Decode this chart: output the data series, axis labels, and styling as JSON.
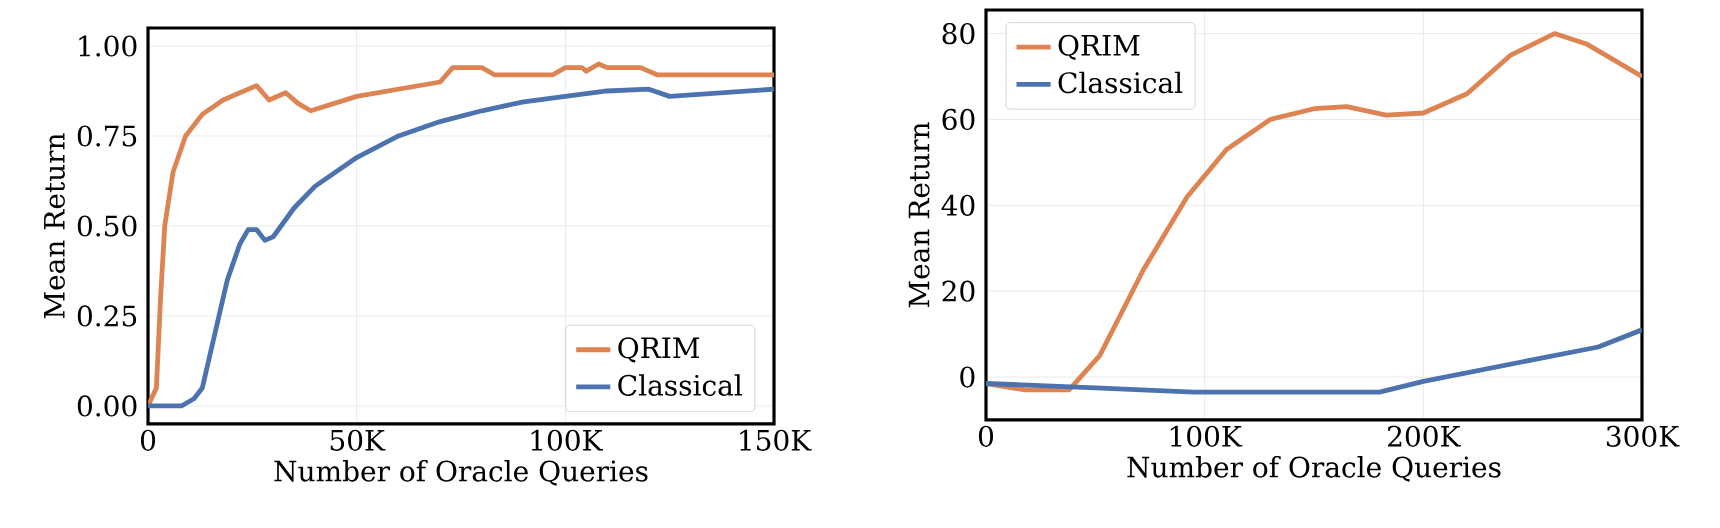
{
  "chart_data": [
    {
      "type": "line",
      "xlabel": "Number of Oracle Queries",
      "ylabel": "Mean Return",
      "xlim": [
        0,
        150000
      ],
      "ylim": [
        -0.05,
        1.05
      ],
      "xticks": [
        0,
        {
          "value": 50000,
          "label": "50K"
        },
        {
          "value": 100000,
          "label": "100K"
        },
        {
          "value": 150000,
          "label": "150K"
        }
      ],
      "yticks": [
        {
          "value": 0,
          "label": "0.00"
        },
        {
          "value": 0.25,
          "label": "0.25"
        },
        {
          "value": 0.5,
          "label": "0.50"
        },
        {
          "value": 0.75,
          "label": "0.75"
        },
        {
          "value": 1,
          "label": "1.00"
        }
      ],
      "grid": true,
      "legend": "bottom right",
      "line_style": "solid",
      "marker": "none",
      "series": [
        {
          "name": "QRIM",
          "color": "#dd8452",
          "x": [
            0,
            2000,
            3000,
            4000,
            6000,
            9000,
            13000,
            18000,
            22000,
            26000,
            29000,
            33000,
            36000,
            39000,
            50000,
            60000,
            70000,
            73000,
            80000,
            83000,
            97000,
            100000,
            104000,
            105000,
            108000,
            110000,
            118000,
            122000,
            150000
          ],
          "values": [
            0,
            0.05,
            0.3,
            0.5,
            0.65,
            0.75,
            0.81,
            0.85,
            0.87,
            0.89,
            0.85,
            0.87,
            0.84,
            0.82,
            0.86,
            0.88,
            0.9,
            0.94,
            0.94,
            0.92,
            0.92,
            0.94,
            0.94,
            0.93,
            0.95,
            0.94,
            0.94,
            0.92,
            0.92
          ]
        },
        {
          "name": "Classical",
          "color": "#4c72b0",
          "x": [
            0,
            8000,
            11000,
            13000,
            16000,
            19000,
            22000,
            24000,
            26000,
            28000,
            30000,
            35000,
            40000,
            50000,
            60000,
            70000,
            80000,
            90000,
            100000,
            110000,
            120000,
            125000,
            150000
          ],
          "values": [
            0,
            0,
            0.02,
            0.05,
            0.2,
            0.35,
            0.45,
            0.49,
            0.49,
            0.46,
            0.47,
            0.55,
            0.61,
            0.69,
            0.75,
            0.79,
            0.82,
            0.845,
            0.86,
            0.875,
            0.88,
            0.86,
            0.88
          ]
        }
      ]
    },
    {
      "type": "line",
      "xlabel": "Number of Oracle Queries",
      "ylabel": "Mean Return",
      "xlim": [
        0,
        300000
      ],
      "ylim": [
        -10,
        85.5
      ],
      "xticks": [
        0,
        {
          "value": 100000,
          "label": "100K"
        },
        {
          "value": 200000,
          "label": "200K"
        },
        {
          "value": 300000,
          "label": "300K"
        }
      ],
      "yticks": [
        0,
        20,
        40,
        60,
        80
      ],
      "grid": true,
      "legend": "top left",
      "line_style": "solid",
      "marker": "none",
      "series": [
        {
          "name": "QRIM",
          "color": "#dd8452",
          "x": [
            0,
            18000,
            38000,
            52000,
            72000,
            92000,
            110000,
            130000,
            150000,
            165000,
            183000,
            200000,
            220000,
            240000,
            260000,
            275000,
            300000
          ],
          "values": [
            -1.5,
            -3,
            -3,
            5,
            25,
            42,
            53,
            60,
            62.5,
            63,
            61,
            61.5,
            66,
            75,
            80,
            77.5,
            70
          ]
        },
        {
          "name": "Classical",
          "color": "#4c72b0",
          "x": [
            0,
            50000,
            95000,
            180000,
            200000,
            220000,
            240000,
            260000,
            280000,
            300000
          ],
          "values": [
            -1.5,
            -2.5,
            -3.5,
            -3.5,
            -1,
            1,
            3,
            5,
            7,
            11
          ]
        }
      ]
    }
  ]
}
